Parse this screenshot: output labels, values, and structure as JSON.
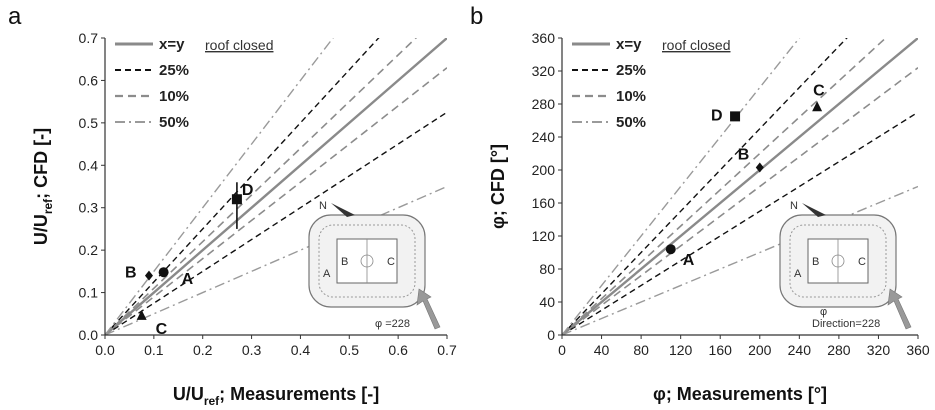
{
  "chart_data": [
    {
      "panel_label": "a",
      "type": "scatter",
      "xlabel": "U/U",
      "xlabel_sub": "ref",
      "xlabel_rest": "; Measurements [-]",
      "ylabel": "U/U",
      "ylabel_sub": "ref",
      "ylabel_rest": "; CFD [-]",
      "xlim": [
        0,
        0.7
      ],
      "ylim": [
        0,
        0.7
      ],
      "xticks": [
        "0.0",
        "0.1",
        "0.2",
        "0.3",
        "0.4",
        "0.5",
        "0.6",
        "0.7"
      ],
      "yticks": [
        "0.0",
        "0.1",
        "0.2",
        "0.3",
        "0.4",
        "0.5",
        "0.6",
        "0.7"
      ],
      "note": "roof closed",
      "legend": [
        {
          "label": "x=y",
          "style": "solid"
        },
        {
          "label": "25%",
          "style": "dash"
        },
        {
          "label": "10%",
          "style": "dashgray"
        },
        {
          "label": "50%",
          "style": "dashdot"
        }
      ],
      "legend_position": "top-left",
      "reference_lines": [
        {
          "label": "x=y",
          "factor": 1.0,
          "style": "solid"
        },
        {
          "label": "25%",
          "factor": 1.25,
          "style": "dash"
        },
        {
          "label": "25%",
          "factor": 0.75,
          "style": "dash"
        },
        {
          "label": "10%",
          "factor": 1.1,
          "style": "dashgray"
        },
        {
          "label": "10%",
          "factor": 0.9,
          "style": "dashgray"
        },
        {
          "label": "50%",
          "factor": 1.5,
          "style": "dashdot"
        },
        {
          "label": "50%",
          "factor": 0.5,
          "style": "dashdot"
        }
      ],
      "points": [
        {
          "label": "A",
          "x": 0.12,
          "y": 0.148,
          "marker": "circle"
        },
        {
          "label": "B",
          "x": 0.09,
          "y": 0.14,
          "marker": "diamond"
        },
        {
          "label": "C",
          "x": 0.075,
          "y": 0.045,
          "marker": "triangle"
        },
        {
          "label": "D",
          "x": 0.27,
          "y": 0.32,
          "marker": "square",
          "err": [
            0.25,
            0.36
          ]
        }
      ],
      "inset": {
        "direction_text": "φ =228",
        "north": "N",
        "sections": [
          "B",
          "C",
          "A"
        ]
      }
    },
    {
      "panel_label": "b",
      "type": "scatter",
      "xlabel": "φ; Measurements [°]",
      "ylabel": "φ; CFD [°]",
      "xlim": [
        0,
        360
      ],
      "ylim": [
        0,
        360
      ],
      "xticks": [
        "0",
        "40",
        "80",
        "120",
        "160",
        "200",
        "240",
        "280",
        "320",
        "360"
      ],
      "yticks": [
        "0",
        "40",
        "80",
        "120",
        "160",
        "200",
        "240",
        "280",
        "320",
        "360"
      ],
      "note": "roof closed",
      "legend": [
        {
          "label": "x=y",
          "style": "solid"
        },
        {
          "label": "25%",
          "style": "dash"
        },
        {
          "label": "10%",
          "style": "dashgray"
        },
        {
          "label": "50%",
          "style": "dashdot"
        }
      ],
      "legend_position": "top-left",
      "reference_lines": [
        {
          "label": "x=y",
          "factor": 1.0,
          "style": "solid"
        },
        {
          "label": "25%",
          "factor": 1.25,
          "style": "dash"
        },
        {
          "label": "25%",
          "factor": 0.75,
          "style": "dash"
        },
        {
          "label": "10%",
          "factor": 1.1,
          "style": "dashgray"
        },
        {
          "label": "10%",
          "factor": 0.9,
          "style": "dashgray"
        },
        {
          "label": "50%",
          "factor": 1.5,
          "style": "dashdot"
        },
        {
          "label": "50%",
          "factor": 0.5,
          "style": "dashdot"
        }
      ],
      "points": [
        {
          "label": "A",
          "x": 110,
          "y": 104,
          "marker": "circle"
        },
        {
          "label": "B",
          "x": 200,
          "y": 203,
          "marker": "diamond"
        },
        {
          "label": "C",
          "x": 258,
          "y": 276,
          "marker": "triangle"
        },
        {
          "label": "D",
          "x": 175,
          "y": 265,
          "marker": "square"
        }
      ],
      "inset": {
        "direction_text": "Direction=228",
        "phi_text": "φ",
        "north": "N",
        "sections": [
          "B",
          "C",
          "A"
        ]
      }
    }
  ],
  "colors": {
    "solid": "#8a8a8a",
    "dash": "#111111",
    "dashgray": "#8c8c8c",
    "dashdot": "#9a9a9a",
    "marker": "#111111",
    "axis": "#333333"
  }
}
